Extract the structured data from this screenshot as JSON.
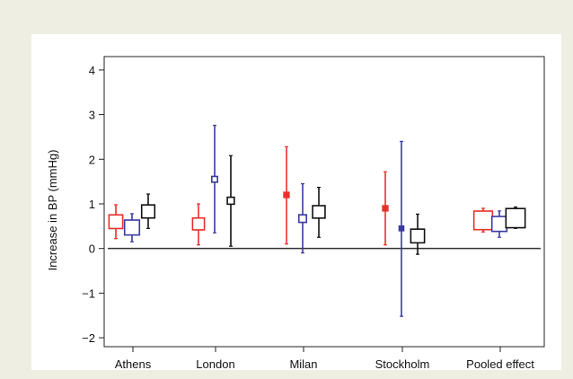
{
  "chart_data": {
    "type": "scatter",
    "subtype": "error-bar",
    "title": "",
    "xlabel": "",
    "ylabel": "Increase in BP (mmHg)",
    "categories": [
      "Athens",
      "London",
      "Milan",
      "Stockholm",
      "Pooled effect"
    ],
    "ylim": [
      -2.2,
      4.3
    ],
    "yticks": [
      -2,
      -1,
      0,
      1,
      2,
      3,
      4
    ],
    "reference_line": 0,
    "grid": false,
    "legend": "none",
    "series": [
      {
        "color": "#e8302a",
        "points": [
          {
            "category": "Athens",
            "y": 0.6,
            "low": 0.22,
            "high": 0.98,
            "marker_weight": 1.8
          },
          {
            "category": "London",
            "y": 0.55,
            "low": 0.08,
            "high": 1.0,
            "marker_weight": 1.5
          },
          {
            "category": "Milan",
            "y": 1.2,
            "low": 0.1,
            "high": 2.28,
            "marker_weight": 0.4
          },
          {
            "category": "Stockholm",
            "y": 0.9,
            "low": 0.08,
            "high": 1.72,
            "marker_weight": 0.4
          },
          {
            "category": "Pooled effect",
            "y": 0.63,
            "low": 0.37,
            "high": 0.9,
            "marker_weight": 2.6
          }
        ]
      },
      {
        "color": "#3a3aa0",
        "points": [
          {
            "category": "Athens",
            "y": 0.47,
            "low": 0.15,
            "high": 0.78,
            "marker_weight": 2.0
          },
          {
            "category": "London",
            "y": 1.55,
            "low": 0.35,
            "high": 2.76,
            "marker_weight": 0.5
          },
          {
            "category": "Milan",
            "y": 0.67,
            "low": -0.1,
            "high": 1.45,
            "marker_weight": 0.8
          },
          {
            "category": "Stockholm",
            "y": 0.45,
            "low": -1.52,
            "high": 2.4,
            "marker_weight": 0.3
          },
          {
            "category": "Pooled effect",
            "y": 0.55,
            "low": 0.25,
            "high": 0.84,
            "marker_weight": 2.0
          }
        ]
      },
      {
        "color": "#111111",
        "points": [
          {
            "category": "Athens",
            "y": 0.83,
            "low": 0.45,
            "high": 1.22,
            "marker_weight": 1.7
          },
          {
            "category": "London",
            "y": 1.07,
            "low": 0.05,
            "high": 2.08,
            "marker_weight": 0.7
          },
          {
            "category": "Milan",
            "y": 0.82,
            "low": 0.25,
            "high": 1.37,
            "marker_weight": 1.6
          },
          {
            "category": "Stockholm",
            "y": 0.28,
            "low": -0.13,
            "high": 0.77,
            "marker_weight": 1.8
          },
          {
            "category": "Pooled effect",
            "y": 0.68,
            "low": 0.45,
            "high": 0.93,
            "marker_weight": 2.7
          }
        ]
      }
    ]
  }
}
